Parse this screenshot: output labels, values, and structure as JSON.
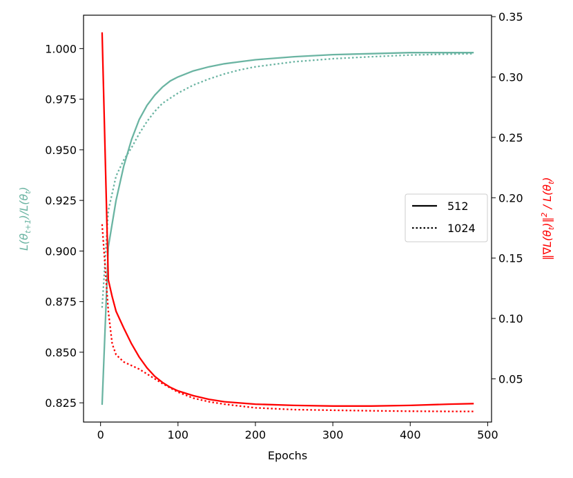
{
  "chart_data": {
    "type": "line",
    "xlabel": "Epochs",
    "ylabel_left": "L(θ_{t+1})/L(θ_t)",
    "ylabel_right": "‖∇L(θ_t)‖² / L(θ_t)",
    "xlim": [
      -22,
      505
    ],
    "ylim_left": [
      0.8155,
      1.0165
    ],
    "ylim_right": [
      0.0142,
      0.3512
    ],
    "x_ticks": [
      0,
      100,
      200,
      300,
      400,
      500
    ],
    "x_tick_labels": [
      "0",
      "100",
      "200",
      "300",
      "400",
      "500"
    ],
    "y_left_ticks": [
      0.825,
      0.85,
      0.875,
      0.9,
      0.925,
      0.95,
      0.975,
      1.0
    ],
    "y_left_tick_labels": [
      "0.825",
      "0.850",
      "0.875",
      "0.900",
      "0.925",
      "0.950",
      "0.975",
      "1.000"
    ],
    "y_right_ticks": [
      0.05,
      0.1,
      0.15,
      0.2,
      0.25,
      0.3,
      0.35
    ],
    "y_right_tick_labels": [
      "0.05",
      "0.10",
      "0.15",
      "0.20",
      "0.25",
      "0.30",
      "0.35"
    ],
    "colors": {
      "left_axis": "#6ab4a2",
      "right_axis": "#ff0000"
    },
    "legend": {
      "placement": "center-right",
      "entries": [
        {
          "label": "512",
          "style": "solid"
        },
        {
          "label": "1024",
          "style": "dotted"
        }
      ]
    },
    "series": [
      {
        "name": "512",
        "axis": "left",
        "style": "solid",
        "x": [
          2,
          10,
          20,
          30,
          40,
          50,
          60,
          70,
          80,
          90,
          100,
          120,
          140,
          160,
          180,
          200,
          250,
          300,
          350,
          400,
          450,
          482
        ],
        "y": [
          0.824,
          0.902,
          0.925,
          0.942,
          0.955,
          0.965,
          0.972,
          0.977,
          0.981,
          0.984,
          0.986,
          0.989,
          0.991,
          0.9925,
          0.9935,
          0.9945,
          0.996,
          0.997,
          0.9975,
          0.998,
          0.998,
          0.998
        ]
      },
      {
        "name": "1024",
        "axis": "left",
        "style": "dotted",
        "x": [
          2,
          10,
          20,
          30,
          40,
          50,
          60,
          70,
          80,
          100,
          120,
          140,
          160,
          180,
          200,
          250,
          300,
          350,
          400,
          450,
          482
        ],
        "y": [
          0.872,
          0.92,
          0.937,
          0.945,
          0.951,
          0.958,
          0.964,
          0.969,
          0.973,
          0.978,
          0.982,
          0.985,
          0.9875,
          0.9895,
          0.991,
          0.9935,
          0.995,
          0.996,
          0.9968,
          0.9973,
          0.9975
        ]
      },
      {
        "name": "512",
        "axis": "right",
        "style": "solid",
        "x": [
          2,
          10,
          15,
          20,
          30,
          40,
          50,
          60,
          70,
          80,
          90,
          100,
          120,
          140,
          160,
          180,
          200,
          250,
          300,
          350,
          400,
          450,
          482
        ],
        "y": [
          0.337,
          0.132,
          0.118,
          0.106,
          0.092,
          0.079,
          0.068,
          0.059,
          0.052,
          0.047,
          0.043,
          0.04,
          0.036,
          0.033,
          0.031,
          0.03,
          0.029,
          0.028,
          0.0275,
          0.0275,
          0.028,
          0.029,
          0.0295
        ]
      },
      {
        "name": "1024",
        "axis": "right",
        "style": "dotted",
        "x": [
          2,
          10,
          15,
          20,
          30,
          40,
          50,
          60,
          70,
          80,
          100,
          120,
          140,
          160,
          180,
          200,
          250,
          300,
          350,
          400,
          450,
          482
        ],
        "y": [
          0.178,
          0.106,
          0.079,
          0.07,
          0.064,
          0.061,
          0.058,
          0.054,
          0.05,
          0.046,
          0.039,
          0.034,
          0.031,
          0.029,
          0.0275,
          0.026,
          0.0245,
          0.024,
          0.0235,
          0.0232,
          0.023,
          0.023
        ]
      }
    ]
  }
}
